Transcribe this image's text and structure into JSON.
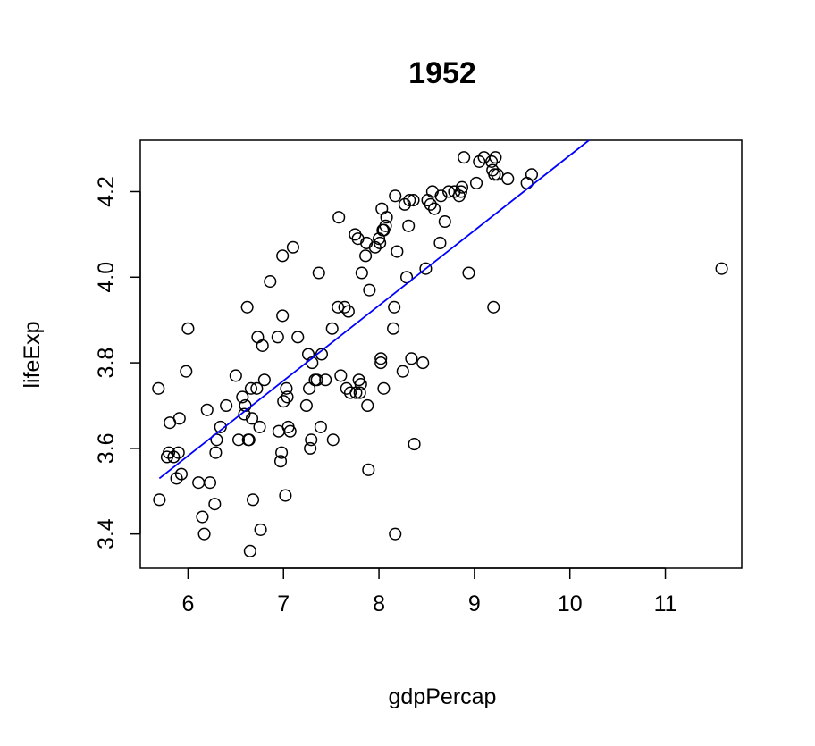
{
  "chart_data": {
    "type": "scatter",
    "title": "1952",
    "xlabel": "gdpPercap",
    "ylabel": "lifeExp",
    "xlim": [
      5.5,
      11.8
    ],
    "ylim": [
      3.32,
      4.32
    ],
    "xticks": [
      6,
      7,
      8,
      9,
      10,
      11
    ],
    "yticks": [
      3.4,
      3.6,
      3.8,
      4.0,
      4.2
    ],
    "grid": false,
    "marker_color": "#000000",
    "fit_color": "#0000ff",
    "fit_line": {
      "x": [
        5.7,
        10.2
      ],
      "y": [
        3.53,
        4.32
      ]
    },
    "points": [
      [
        5.69,
        3.74
      ],
      [
        5.7,
        3.48
      ],
      [
        5.78,
        3.58
      ],
      [
        5.8,
        3.59
      ],
      [
        5.81,
        3.66
      ],
      [
        5.85,
        3.58
      ],
      [
        5.88,
        3.53
      ],
      [
        5.9,
        3.59
      ],
      [
        5.91,
        3.67
      ],
      [
        5.93,
        3.54
      ],
      [
        5.98,
        3.78
      ],
      [
        6.0,
        3.88
      ],
      [
        6.11,
        3.52
      ],
      [
        6.15,
        3.44
      ],
      [
        6.17,
        3.4
      ],
      [
        6.2,
        3.69
      ],
      [
        6.23,
        3.52
      ],
      [
        6.28,
        3.47
      ],
      [
        6.29,
        3.59
      ],
      [
        6.3,
        3.62
      ],
      [
        6.34,
        3.65
      ],
      [
        6.4,
        3.7
      ],
      [
        6.5,
        3.77
      ],
      [
        6.53,
        3.62
      ],
      [
        6.57,
        3.72
      ],
      [
        6.59,
        3.68
      ],
      [
        6.6,
        3.7
      ],
      [
        6.62,
        3.93
      ],
      [
        6.63,
        3.62
      ],
      [
        6.64,
        3.62
      ],
      [
        6.65,
        3.36
      ],
      [
        6.66,
        3.74
      ],
      [
        6.67,
        3.67
      ],
      [
        6.68,
        3.48
      ],
      [
        6.72,
        3.74
      ],
      [
        6.73,
        3.86
      ],
      [
        6.75,
        3.65
      ],
      [
        6.76,
        3.41
      ],
      [
        6.78,
        3.84
      ],
      [
        6.8,
        3.76
      ],
      [
        6.86,
        3.99
      ],
      [
        6.94,
        3.86
      ],
      [
        6.95,
        3.64
      ],
      [
        6.97,
        3.57
      ],
      [
        6.98,
        3.59
      ],
      [
        6.99,
        4.05
      ],
      [
        6.99,
        3.91
      ],
      [
        7.0,
        3.71
      ],
      [
        7.02,
        3.49
      ],
      [
        7.03,
        3.74
      ],
      [
        7.04,
        3.72
      ],
      [
        7.05,
        3.65
      ],
      [
        7.07,
        3.64
      ],
      [
        7.1,
        4.07
      ],
      [
        7.15,
        3.86
      ],
      [
        7.24,
        3.7
      ],
      [
        7.26,
        3.82
      ],
      [
        7.27,
        3.74
      ],
      [
        7.28,
        3.6
      ],
      [
        7.29,
        3.62
      ],
      [
        7.3,
        3.8
      ],
      [
        7.33,
        3.76
      ],
      [
        7.35,
        3.76
      ],
      [
        7.37,
        4.01
      ],
      [
        7.39,
        3.65
      ],
      [
        7.4,
        3.82
      ],
      [
        7.44,
        3.76
      ],
      [
        7.51,
        3.88
      ],
      [
        7.52,
        3.62
      ],
      [
        7.57,
        3.93
      ],
      [
        7.58,
        4.14
      ],
      [
        7.6,
        3.77
      ],
      [
        7.64,
        3.93
      ],
      [
        7.66,
        3.74
      ],
      [
        7.68,
        3.92
      ],
      [
        7.7,
        3.73
      ],
      [
        7.75,
        4.1
      ],
      [
        7.76,
        3.73
      ],
      [
        7.78,
        4.09
      ],
      [
        7.79,
        3.76
      ],
      [
        7.8,
        3.73
      ],
      [
        7.81,
        3.75
      ],
      [
        7.82,
        4.01
      ],
      [
        7.86,
        4.05
      ],
      [
        7.87,
        4.08
      ],
      [
        7.88,
        3.7
      ],
      [
        7.89,
        3.55
      ],
      [
        7.9,
        3.97
      ],
      [
        7.96,
        4.07
      ],
      [
        8.0,
        4.09
      ],
      [
        8.01,
        4.08
      ],
      [
        8.02,
        3.81
      ],
      [
        8.02,
        3.8
      ],
      [
        8.03,
        4.16
      ],
      [
        8.04,
        4.11
      ],
      [
        8.05,
        4.11
      ],
      [
        8.05,
        3.74
      ],
      [
        8.07,
        4.12
      ],
      [
        8.08,
        4.14
      ],
      [
        8.15,
        3.88
      ],
      [
        8.16,
        3.93
      ],
      [
        8.17,
        4.19
      ],
      [
        8.17,
        3.4
      ],
      [
        8.19,
        4.06
      ],
      [
        8.25,
        3.78
      ],
      [
        8.27,
        4.17
      ],
      [
        8.29,
        4.0
      ],
      [
        8.31,
        4.12
      ],
      [
        8.32,
        4.18
      ],
      [
        8.34,
        3.81
      ],
      [
        8.36,
        4.18
      ],
      [
        8.37,
        3.61
      ],
      [
        8.46,
        3.8
      ],
      [
        8.49,
        4.02
      ],
      [
        8.51,
        4.18
      ],
      [
        8.54,
        4.17
      ],
      [
        8.56,
        4.2
      ],
      [
        8.58,
        4.16
      ],
      [
        8.64,
        4.08
      ],
      [
        8.65,
        4.19
      ],
      [
        8.69,
        4.13
      ],
      [
        8.73,
        4.2
      ],
      [
        8.79,
        4.2
      ],
      [
        8.84,
        4.19
      ],
      [
        8.86,
        4.2
      ],
      [
        8.87,
        4.21
      ],
      [
        8.89,
        4.28
      ],
      [
        8.94,
        4.01
      ],
      [
        9.02,
        4.22
      ],
      [
        9.05,
        4.27
      ],
      [
        9.1,
        4.28
      ],
      [
        9.18,
        4.27
      ],
      [
        9.19,
        4.25
      ],
      [
        9.2,
        3.93
      ],
      [
        9.21,
        4.24
      ],
      [
        9.22,
        4.28
      ],
      [
        9.24,
        4.24
      ],
      [
        9.35,
        4.23
      ],
      [
        9.55,
        4.22
      ],
      [
        9.6,
        4.24
      ],
      [
        11.59,
        4.02
      ]
    ]
  }
}
